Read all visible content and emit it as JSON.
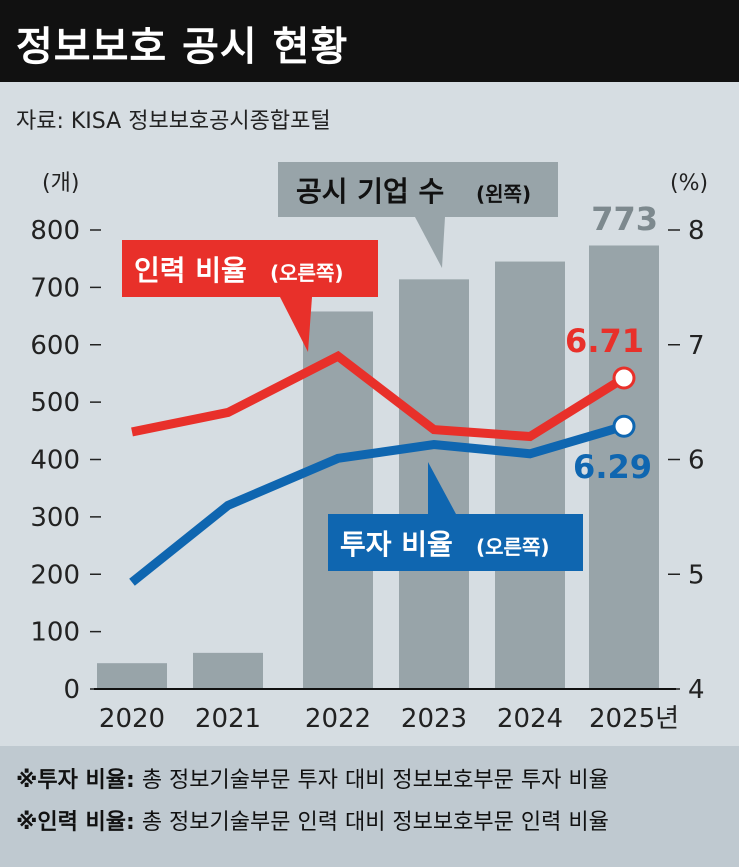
{
  "header": {
    "title": "정보보호 공시 현황",
    "source": "자료: KISA 정보보호공시종합포털"
  },
  "axes": {
    "left_unit": "(개)",
    "right_unit": "(%)",
    "left_ticks": [
      "800",
      "700",
      "600",
      "500",
      "400",
      "300",
      "200",
      "100",
      "0"
    ],
    "right_ticks": [
      "8",
      "7",
      "6",
      "5",
      "4"
    ],
    "categories": [
      "2020",
      "2021",
      "2022",
      "2023",
      "2024",
      "2025년"
    ]
  },
  "labels": {
    "bar_series": "공시 기업 수",
    "bar_series_side": "(왼쪽)",
    "red_series": "인력 비율",
    "red_series_side": "(오른쪽)",
    "blue_series": "투자 비율",
    "blue_series_side": "(오른쪽)",
    "bar_last_value": "773",
    "red_last_value": "6.71",
    "blue_last_value": "6.29"
  },
  "notes": [
    {
      "term": "※투자 비율:",
      "text": "총 정보기술부문 투자 대비 정보보호부문 투자 비율"
    },
    {
      "term": "※인력 비율:",
      "text": "총 정보기술부문 인력 대비 정보보호부문 인력 비율"
    }
  ],
  "colors": {
    "bar": "#98a4a9",
    "red": "#e8302a",
    "blue": "#0f66b0",
    "chart_bg": "#d6dde2",
    "title_bg": "#111111"
  },
  "chart_data": {
    "type": "bar",
    "categories": [
      "2020",
      "2021",
      "2022",
      "2023",
      "2024",
      "2025"
    ],
    "bars": {
      "name": "공시 기업 수",
      "axis": "left",
      "values": [
        45,
        63,
        658,
        714,
        745,
        773
      ],
      "ylim": [
        0,
        800
      ]
    },
    "lines": [
      {
        "name": "인력 비율",
        "axis": "right",
        "values": [
          6.24,
          6.41,
          6.9,
          6.26,
          6.2,
          6.71
        ]
      },
      {
        "name": "투자 비율",
        "axis": "right",
        "values": [
          4.93,
          5.6,
          6.01,
          6.13,
          6.05,
          6.29
        ]
      }
    ],
    "y2lim": [
      4,
      8
    ],
    "grid": false
  }
}
